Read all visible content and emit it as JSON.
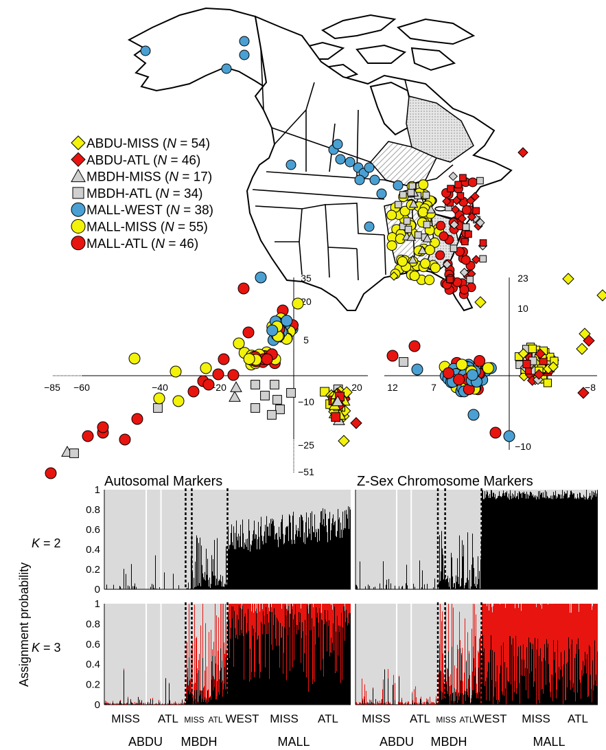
{
  "colors": {
    "yellow": "#f2f20a",
    "red": "#e8140f",
    "blue": "#4aa0d2",
    "grey": "#d0d0d0",
    "light": "#dadada",
    "black": "#000000"
  },
  "legend": [
    {
      "marker": "diamond",
      "color": "yellow",
      "prefix": "ABDU-MISS (",
      "n": "N",
      "suffix": " = 54)"
    },
    {
      "marker": "diamond",
      "color": "red",
      "prefix": "ABDU-ATL (",
      "n": "N",
      "suffix": " = 46)"
    },
    {
      "marker": "triangle",
      "color": "grey",
      "prefix": "MBDH-MISS (",
      "n": "N",
      "suffix": " = 17)"
    },
    {
      "marker": "square",
      "color": "grey",
      "prefix": "MBDH-ATL (",
      "n": "N",
      "suffix": " = 34)"
    },
    {
      "marker": "circle",
      "color": "blue",
      "prefix": "MALL-WEST (",
      "n": "N",
      "suffix": " = 38)"
    },
    {
      "marker": "circle",
      "color": "yellow",
      "prefix": "MALL-MISS (",
      "n": "N",
      "suffix": " = 55)"
    },
    {
      "marker": "circle",
      "color": "red",
      "prefix": "MALL-ATL (",
      "n": "N",
      "suffix": " = 46)"
    }
  ],
  "pca_left": {
    "x_ticks": [
      "−85",
      "−60",
      "−40",
      "−20",
      "20"
    ],
    "y_ticks": [
      "35",
      "20",
      "5",
      "−10",
      "−25",
      "−51"
    ]
  },
  "pca_right": {
    "x_ticks": [
      "12",
      "7",
      "−8"
    ],
    "y_ticks": [
      "23",
      "10",
      "−10"
    ]
  },
  "panels": {
    "autosomal_title": "Autosomal Markers",
    "zsex_title": "Z-Sex Chromosome Markers",
    "y_axis_label": "Assignment probability",
    "y_ticks": [
      "1",
      "0.8",
      "0.6",
      "0.4",
      "0.2",
      "0"
    ],
    "k2": "K = 2",
    "k3": "K = 3",
    "k_letter": "K",
    "k2_value": " = 2",
    "k3_value": " = 3"
  },
  "x_labels": {
    "left_pop": [
      "MISS",
      "ATL",
      "MISS",
      "ATL",
      "WEST",
      "MISS",
      "ATL"
    ],
    "right_pop": [
      "MISS",
      "ATL",
      "MISS",
      "ATL",
      "WEST",
      "MISS",
      "ATL"
    ],
    "species": [
      "ABDU",
      "MBDH",
      "MALL"
    ]
  }
}
